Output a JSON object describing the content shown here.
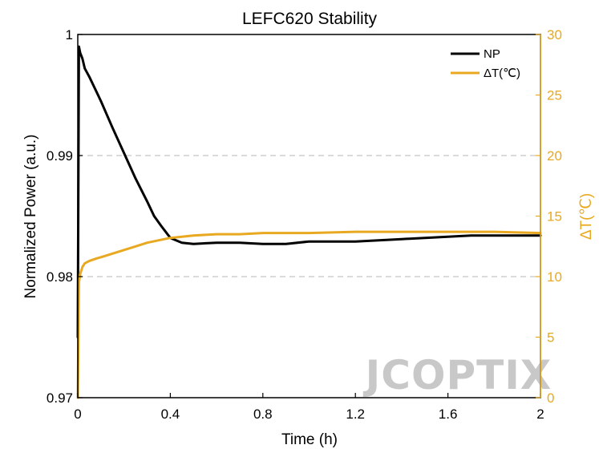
{
  "chart_data": {
    "type": "line",
    "title": "LEFC620 Stability",
    "xlabel": "Time (h)",
    "ylabel_left": "Normalized Power (a.u.)",
    "ylabel_right": "ΔT(℃)",
    "xlim": [
      0,
      2
    ],
    "x_ticks": [
      0,
      0.4,
      0.8,
      1.2,
      1.6,
      2
    ],
    "x_tick_labels": [
      "0",
      "0.4",
      "0.8",
      "1.2",
      "1.6",
      "2"
    ],
    "ylim_left": [
      0.97,
      1.0
    ],
    "y_left_ticks": [
      0.97,
      0.98,
      0.99,
      1.0
    ],
    "y_left_tick_labels": [
      "0.97",
      "0.98",
      "0.99",
      "1"
    ],
    "ylim_right": [
      0,
      30
    ],
    "y_right_ticks": [
      0,
      5,
      10,
      15,
      20,
      25,
      30
    ],
    "y_right_tick_labels": [
      "0",
      "5",
      "10",
      "15",
      "20",
      "25",
      "30"
    ],
    "grid": "dashed horizontal at 0.98 and 0.99",
    "legend_position": "top-right",
    "series": [
      {
        "name": "NP",
        "axis": "left",
        "color": "#000000",
        "x": [
          0,
          0.005,
          0.01,
          0.02,
          0.03,
          0.05,
          0.08,
          0.1,
          0.15,
          0.2,
          0.25,
          0.3,
          0.33,
          0.36,
          0.4,
          0.45,
          0.5,
          0.6,
          0.7,
          0.8,
          0.9,
          1.0,
          1.1,
          1.2,
          1.3,
          1.4,
          1.5,
          1.6,
          1.7,
          1.8,
          1.9,
          2.0
        ],
        "y": [
          0.975,
          0.999,
          0.9985,
          0.998,
          0.9972,
          0.9965,
          0.9953,
          0.9945,
          0.9923,
          0.9902,
          0.9881,
          0.9862,
          0.985,
          0.9842,
          0.9832,
          0.9828,
          0.9827,
          0.9828,
          0.9828,
          0.9827,
          0.9827,
          0.9829,
          0.9829,
          0.9829,
          0.983,
          0.9831,
          0.9832,
          0.9833,
          0.9834,
          0.9834,
          0.9834,
          0.9834
        ]
      },
      {
        "name": "ΔT(℃)",
        "axis": "right",
        "color": "#E8A920",
        "x": [
          0,
          0.005,
          0.01,
          0.02,
          0.03,
          0.05,
          0.08,
          0.1,
          0.15,
          0.2,
          0.25,
          0.3,
          0.35,
          0.4,
          0.5,
          0.6,
          0.7,
          0.8,
          0.9,
          1.0,
          1.2,
          1.4,
          1.6,
          1.8,
          2.0
        ],
        "y": [
          0,
          9.5,
          10.2,
          10.8,
          11.1,
          11.3,
          11.5,
          11.6,
          11.9,
          12.2,
          12.5,
          12.8,
          13.0,
          13.2,
          13.4,
          13.5,
          13.5,
          13.6,
          13.6,
          13.6,
          13.7,
          13.7,
          13.7,
          13.7,
          13.6
        ]
      }
    ]
  },
  "watermark": "JCOPTIX"
}
